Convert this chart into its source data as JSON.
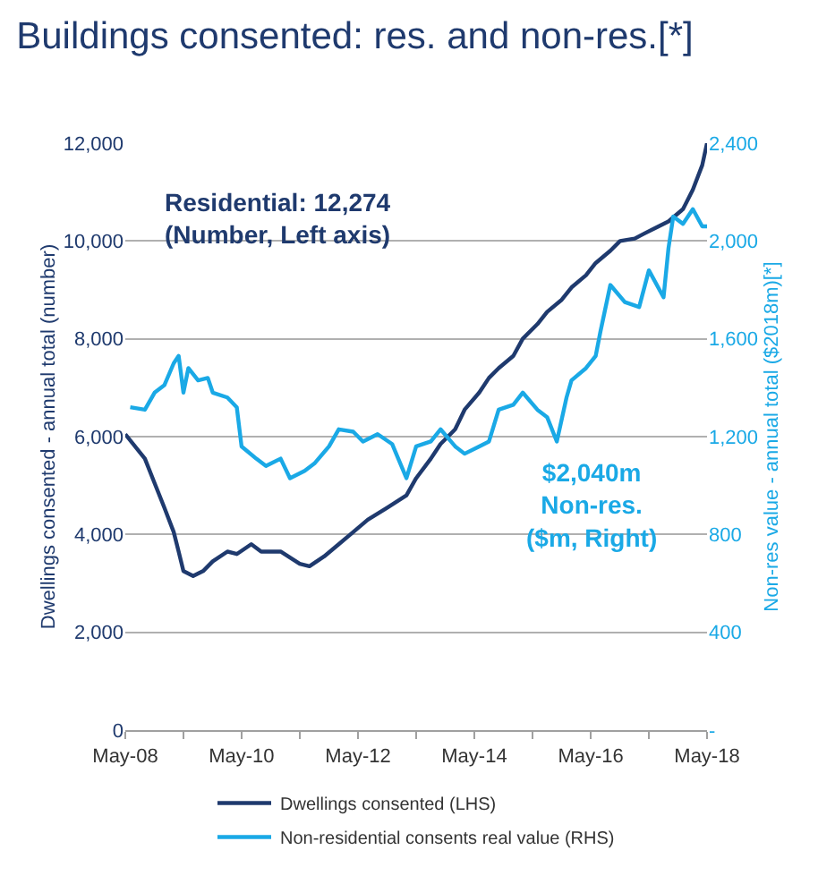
{
  "chart_data": {
    "type": "line",
    "title": "Buildings consented: res. and non-res.[*]",
    "ylabel": "Dwellings consented - annual total (number)",
    "y2label": "Non-res value - annual total ($2018m)[*]",
    "annotations": [
      "Residential: 12,274\n(Number, Left axis)",
      "$2,040m\nNon-res.\n($m, Right)"
    ],
    "xlim": [
      "2008-05",
      "2018-05"
    ],
    "xticks": [
      {
        "value": "2008-05",
        "label": "May-08"
      },
      {
        "value": "2009-05",
        "label": null
      },
      {
        "value": "2010-05",
        "label": "May-10"
      },
      {
        "value": "2011-05",
        "label": null
      },
      {
        "value": "2012-05",
        "label": "May-12"
      },
      {
        "value": "2013-05",
        "label": null
      },
      {
        "value": "2014-05",
        "label": "May-14"
      },
      {
        "value": "2015-05",
        "label": null
      },
      {
        "value": "2016-05",
        "label": "May-16"
      },
      {
        "value": "2017-05",
        "label": null
      },
      {
        "value": "2018-05",
        "label": "May-18"
      }
    ],
    "ylim": [
      0,
      12000
    ],
    "yticks": [
      {
        "value": 0,
        "label": "0"
      },
      {
        "value": 2000,
        "label": "2,000"
      },
      {
        "value": 4000,
        "label": "4,000"
      },
      {
        "value": 6000,
        "label": "6,000"
      },
      {
        "value": 8000,
        "label": "8,000"
      },
      {
        "value": 10000,
        "label": "10,000"
      },
      {
        "value": 12000,
        "label": "12,000"
      }
    ],
    "y2lim": [
      0,
      2400
    ],
    "y2ticks": [
      {
        "value": 0,
        "label": "-"
      },
      400,
      800,
      {
        "value": 1200,
        "label": "1,200"
      },
      {
        "value": 1600,
        "label": "1,600"
      },
      {
        "value": 2000,
        "label": "2,000"
      },
      {
        "value": 2400,
        "label": "2,400"
      }
    ],
    "grid": "y",
    "legend": "bottom",
    "marker": "none",
    "line_style": "solid",
    "series": [
      {
        "name": "Dwellings consented (LHS)",
        "color": "#1f3a6e",
        "x": [
          "2008-05",
          "2008-09",
          "2008-11",
          "2009-01",
          "2009-03",
          "2009-04",
          "2009-05",
          "2009-07",
          "2009-09",
          "2009-11",
          "2010-02",
          "2010-04",
          "2010-07",
          "2010-09",
          "2011-01",
          "2011-05",
          "2011-07",
          "2011-10",
          "2012-01",
          "2012-04",
          "2012-07",
          "2012-11",
          "2013-03",
          "2013-05",
          "2013-08",
          "2013-10",
          "2014-01",
          "2014-03",
          "2014-06",
          "2014-08",
          "2014-10",
          "2015-01",
          "2015-03",
          "2015-06",
          "2015-08",
          "2015-11",
          "2016-01",
          "2016-04",
          "2016-06",
          "2016-09",
          "2016-11",
          "2017-02",
          "2017-04",
          "2017-07",
          "2017-09",
          "2017-12",
          "2018-02",
          "2018-04",
          "2018-05"
        ],
        "values": [
          6050,
          5550,
          5050,
          4550,
          4050,
          3650,
          3250,
          3150,
          3250,
          3450,
          3650,
          3600,
          3800,
          3650,
          3650,
          3400,
          3350,
          3550,
          3800,
          4050,
          4300,
          4550,
          4800,
          5150,
          5550,
          5850,
          6150,
          6550,
          6900,
          7200,
          7400,
          7650,
          8000,
          8300,
          8550,
          8800,
          9050,
          9300,
          9550,
          9800,
          10000,
          10050,
          10150,
          10300,
          10400,
          10650,
          11050,
          11550,
          12000
        ]
      },
      {
        "name": "Non-residential consents real value (RHS)",
        "color": "#1aa9e6",
        "axis": "y2",
        "x": [
          "2008-06",
          "2008-09",
          "2008-11",
          "2009-01",
          "2009-03",
          "2009-04",
          "2009-05",
          "2009-06",
          "2009-08",
          "2009-10",
          "2009-11",
          "2010-02",
          "2010-04",
          "2010-05",
          "2010-08",
          "2010-10",
          "2011-01",
          "2011-03",
          "2011-06",
          "2011-08",
          "2011-11",
          "2012-01",
          "2012-04",
          "2012-06",
          "2012-09",
          "2012-12",
          "2013-03",
          "2013-05",
          "2013-08",
          "2013-10",
          "2014-01",
          "2014-03",
          "2014-06",
          "2014-08",
          "2014-10",
          "2015-01",
          "2015-03",
          "2015-06",
          "2015-08",
          "2015-10",
          "2015-12",
          "2016-01",
          "2016-04",
          "2016-06",
          "2016-07",
          "2016-09",
          "2016-12",
          "2017-03",
          "2017-05",
          "2017-08",
          "2017-09",
          "2017-10",
          "2017-12",
          "2018-02",
          "2018-04",
          "2018-05"
        ],
        "values": [
          1320,
          1310,
          1380,
          1410,
          1500,
          1530,
          1380,
          1480,
          1430,
          1440,
          1380,
          1360,
          1320,
          1160,
          1110,
          1080,
          1110,
          1030,
          1060,
          1090,
          1160,
          1230,
          1220,
          1180,
          1210,
          1170,
          1030,
          1160,
          1180,
          1230,
          1160,
          1130,
          1160,
          1180,
          1310,
          1330,
          1380,
          1310,
          1280,
          1180,
          1360,
          1430,
          1480,
          1530,
          1630,
          1820,
          1750,
          1730,
          1880,
          1770,
          1970,
          2100,
          2070,
          2130,
          2060,
          2060
        ]
      }
    ]
  }
}
